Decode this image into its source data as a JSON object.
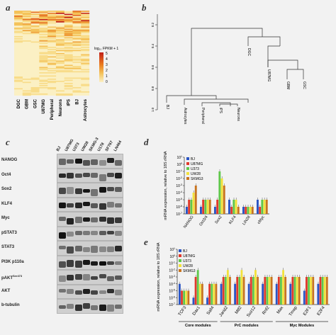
{
  "panels": {
    "a": "a",
    "b": "b",
    "c": "c",
    "d": "d",
    "e": "e"
  },
  "heatmap": {
    "columns": [
      "DGC",
      "GBM",
      "GSC",
      "U87MG",
      "Peripheral",
      "Neurons",
      "iPS",
      "BJ",
      "Astrocytes"
    ],
    "legend_title": "log₁₀ FPKM + 1",
    "legend_ticks": [
      "5",
      "4",
      "3",
      "2",
      "1",
      "0"
    ]
  },
  "dendrogram": {
    "leaves": [
      "BJ",
      "Astrocytes",
      "Peripheral",
      "iPS",
      "Neurons",
      "DGC",
      "U87MG",
      "GBM",
      "GSC"
    ],
    "y_ticks": [
      "1.0",
      "0.8",
      "0.6",
      "0.4",
      "0.2"
    ]
  },
  "western": {
    "lanes": [
      "BJ",
      "U87MG",
      "U373",
      "UW28",
      "SKMG-3",
      "U178",
      "SF767",
      "LN464"
    ],
    "proteins": [
      "NANOG",
      "Oct4",
      "Sox2",
      "KLF4",
      "Myc",
      "pSTAT3",
      "STAT3",
      "PI3K p110a",
      "pAKT",
      "AKT",
      "b-tubulin"
    ],
    "pakt_sup": "Ser473"
  },
  "chart_d": {
    "ylabel": "mRNA expression, relative to 18S rRNA",
    "categories": [
      "NANOG",
      "Oct3/4",
      "Sox2",
      "KLF4",
      "LIN28",
      "cMyc"
    ],
    "ytick_exps": [
      "1",
      "0",
      "-1",
      "-2",
      "-3",
      "-4",
      "-5",
      "-6",
      "-7"
    ],
    "legend": [
      "BJ",
      "U87MG",
      "U373",
      "UW28",
      "SKMG3"
    ]
  },
  "chart_e": {
    "ylabel": "mRNA expression, relative to 18S rRNA",
    "categories": [
      "TCF3",
      "Dax1",
      "Sall4",
      "Jarid2",
      "Mtf2",
      "Suz12",
      "Rnf2",
      "Max",
      "Tmap",
      "E2F1",
      "E2F4"
    ],
    "ytick_exps": [
      "1",
      "0",
      "-1",
      "-2",
      "-3",
      "-4",
      "-5",
      "-6",
      "-7"
    ],
    "legend": [
      "BJ",
      "U87MG",
      "U373",
      "UW28",
      "SKMG3"
    ],
    "modules": [
      {
        "label": "Core modules",
        "start": 0,
        "end": 2
      },
      {
        "label": "PrC modules",
        "start": 3,
        "end": 6
      },
      {
        "label": "Myc Modules",
        "start": 7,
        "end": 10
      }
    ]
  },
  "colors": {
    "BJ": "#2a54c4",
    "U87MG": "#e0392b",
    "U373": "#5fc84a",
    "UW28": "#f2e23a",
    "SKMG3": "#c8741f"
  },
  "chart_data": [
    {
      "type": "bar",
      "panel": "d",
      "log_scale": true,
      "ylim": [
        1e-07,
        10
      ],
      "categories": [
        "NANOG",
        "Oct3/4",
        "Sox2",
        "KLF4",
        "LIN28",
        "cMyc"
      ],
      "series": [
        {
          "name": "BJ",
          "values": [
            1e-06,
            1e-06,
            1e-06,
            1e-05,
            1e-06,
            1e-05
          ]
        },
        {
          "name": "U87MG",
          "values": [
            1e-05,
            1e-05,
            1e-05,
            1e-06,
            1e-06,
            1e-06
          ]
        },
        {
          "name": "U373",
          "values": [
            1e-05,
            1e-05,
            0.1,
            1e-05,
            1e-06,
            1e-05
          ]
        },
        {
          "name": "UW28",
          "values": [
            0.0001,
            1e-05,
            0.01,
            1e-05,
            1e-06,
            1e-05
          ]
        },
        {
          "name": "SKMG3",
          "values": [
            0.001,
            1e-05,
            0.001,
            1e-06,
            1e-06,
            1e-05
          ]
        }
      ]
    },
    {
      "type": "bar",
      "panel": "e",
      "log_scale": true,
      "ylim": [
        1e-07,
        10
      ],
      "categories": [
        "TCF3",
        "Dax1",
        "Sall4",
        "Jarid2",
        "Mtf2",
        "Suz12",
        "Rnf2",
        "Max",
        "Tmap",
        "E2F1",
        "E2F4"
      ],
      "series": [
        {
          "name": "BJ",
          "values": [
            0.0001,
            1e-06,
            1e-06,
            0.0001,
            0.0001,
            0.0001,
            0.0001,
            0.0001,
            0.0001,
            1e-05,
            0.0001
          ]
        },
        {
          "name": "U87MG",
          "values": [
            1e-05,
            0.001,
            0.0001,
            0.001,
            0.001,
            0.001,
            0.001,
            0.001,
            0.001,
            0.001,
            0.001
          ]
        },
        {
          "name": "U373",
          "values": [
            1e-05,
            0.01,
            0.0001,
            0.001,
            0.001,
            0.001,
            0.001,
            0.001,
            0.001,
            0.001,
            0.001
          ]
        },
        {
          "name": "UW28",
          "values": [
            1e-05,
            0.0001,
            0.0001,
            0.01,
            0.01,
            0.01,
            0.001,
            0.01,
            0.001,
            0.001,
            0.001
          ]
        },
        {
          "name": "SKMG3",
          "values": [
            1e-05,
            0.0001,
            0.0001,
            0.001,
            0.001,
            0.001,
            0.001,
            0.001,
            0.001,
            0.001,
            0.001
          ]
        }
      ]
    }
  ]
}
